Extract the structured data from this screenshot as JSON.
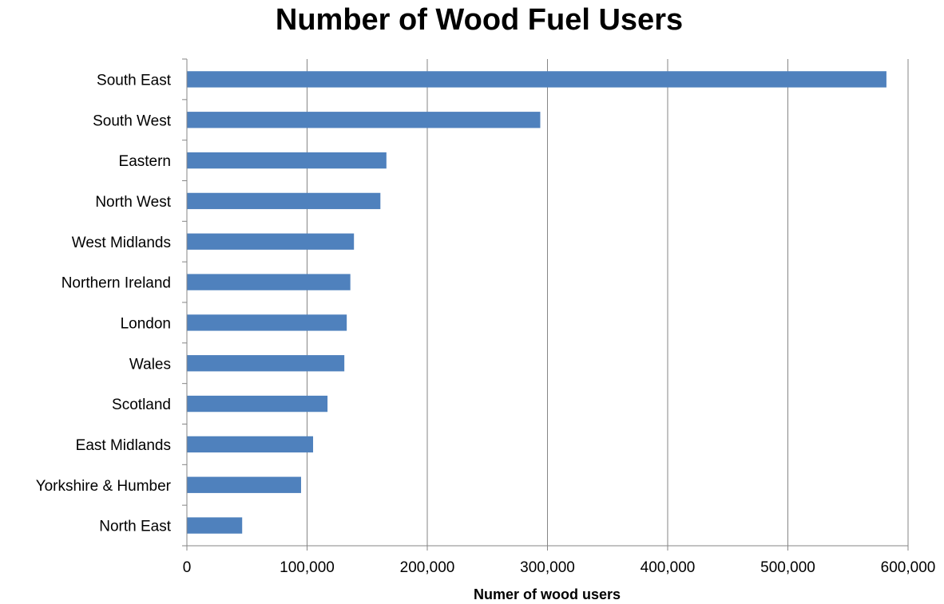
{
  "chart_data": {
    "type": "bar",
    "orientation": "horizontal",
    "title": "Number of Wood Fuel Users",
    "xlabel": "Numer of wood users",
    "ylabel": "",
    "categories": [
      "South East",
      "South West",
      "Eastern",
      "North West",
      "West Midlands",
      "Northern Ireland",
      "London",
      "Wales",
      "Scotland",
      "East Midlands",
      "Yorkshire & Humber",
      "North East"
    ],
    "values": [
      582000,
      294000,
      166000,
      161000,
      139000,
      136000,
      133000,
      131000,
      117000,
      105000,
      95000,
      46000
    ],
    "xlim": [
      0,
      600000
    ],
    "xticks": [
      0,
      100000,
      200000,
      300000,
      400000,
      500000,
      600000
    ],
    "xtick_labels": [
      "0",
      "100,000",
      "200,000",
      "300,000",
      "400,000",
      "500,000",
      "600,000"
    ],
    "grid": "vertical major gridlines",
    "legend": "none",
    "bar_color": "#4F81BD",
    "grid_color": "#868686"
  }
}
